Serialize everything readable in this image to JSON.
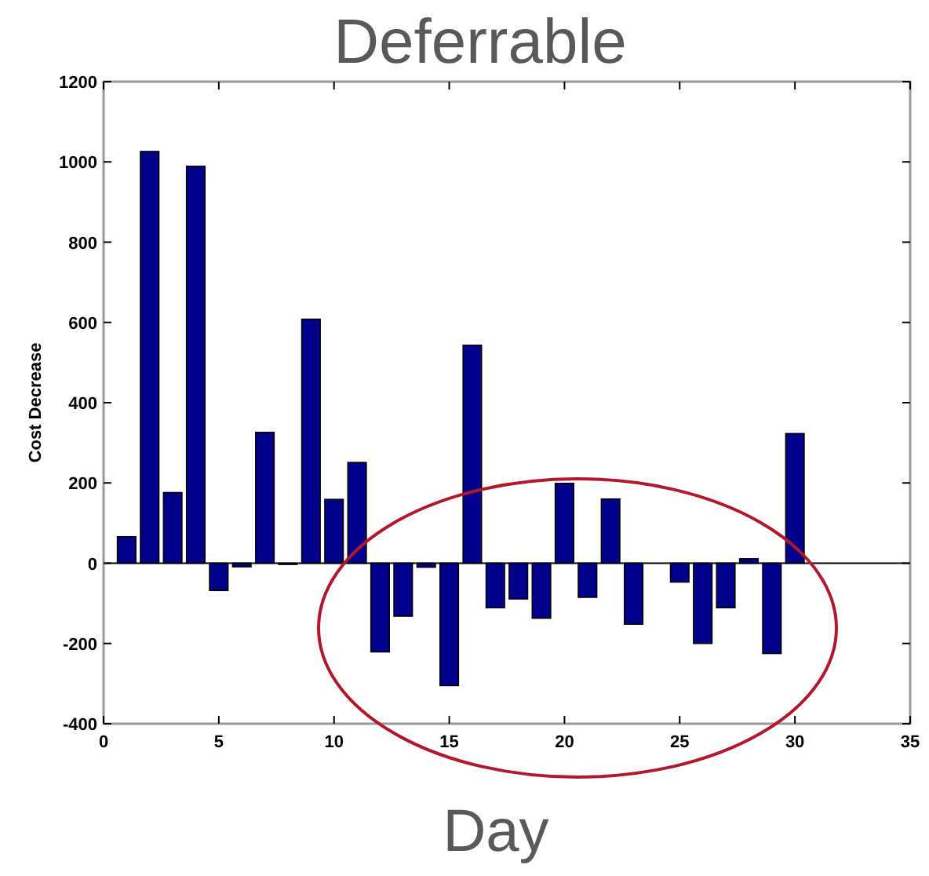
{
  "chart_data": {
    "type": "bar",
    "title": "Deferrable",
    "xlabel": "Day",
    "ylabel": "Cost Decrease",
    "x": [
      1,
      2,
      3,
      4,
      5,
      6,
      7,
      8,
      9,
      10,
      11,
      12,
      13,
      14,
      15,
      16,
      17,
      18,
      19,
      20,
      21,
      22,
      23,
      24,
      25,
      26,
      27,
      28,
      29,
      30
    ],
    "values": [
      66,
      1026,
      176,
      989,
      -68,
      -9,
      326,
      -3,
      608,
      159,
      251,
      -221,
      -132,
      -10,
      -305,
      543,
      -111,
      -89,
      -137,
      199,
      -85,
      160,
      -152,
      0,
      -47,
      -200,
      -111,
      11,
      -225,
      323
    ],
    "color": "#00008b",
    "xlim": [
      0,
      35
    ],
    "xticks": [
      0,
      5,
      10,
      15,
      20,
      25,
      30,
      35
    ],
    "ylim": [
      -400,
      1200
    ],
    "yticks": [
      -400,
      -200,
      0,
      200,
      400,
      600,
      800,
      1000,
      1200
    ],
    "ref_lines": [
      {
        "axis": "y",
        "value": 0,
        "color": "#000000"
      }
    ],
    "grid": false
  }
}
